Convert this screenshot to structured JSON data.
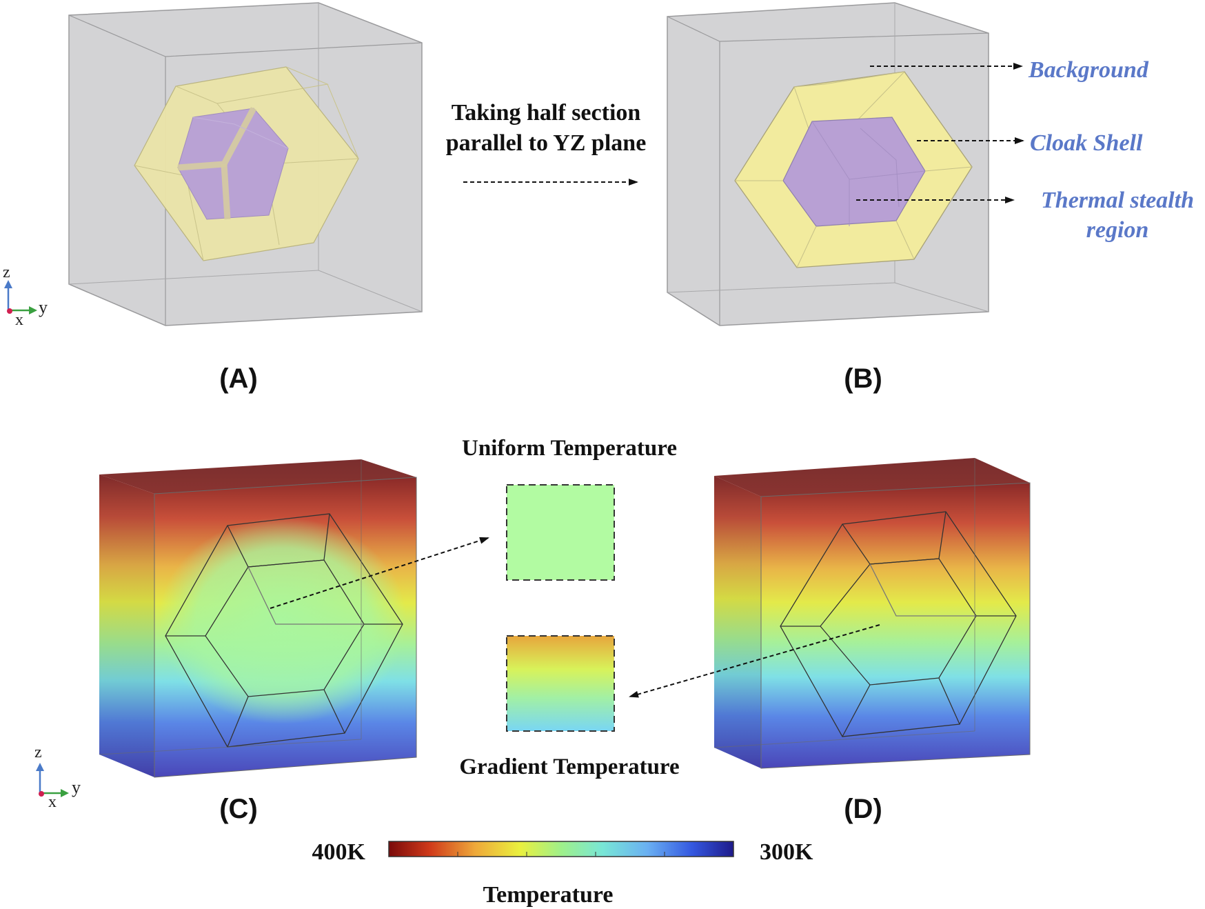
{
  "panels": {
    "a_label": "(A)",
    "b_label": "(B)",
    "c_label": "(C)",
    "d_label": "(D)"
  },
  "annotations": {
    "section_line1": "Taking half section",
    "section_line2": "parallel to YZ plane",
    "background": "Background",
    "cloak_shell": "Cloak Shell",
    "stealth_line1": "Thermal stealth",
    "stealth_line2": "region",
    "uniform": "Uniform Temperature",
    "gradient": "Gradient Temperature"
  },
  "axes": {
    "z": "z",
    "x": "x",
    "y": "y"
  },
  "colorbar": {
    "left_label": "400K",
    "right_label": "300K",
    "title": "Temperature"
  },
  "colors": {
    "label_blue": "#5a78c8",
    "box_gray": "#d0d0d2",
    "shell_yellow": "#f2eaa0",
    "core_purple": "#b7a0d6",
    "uniform_green": "#b2fba2"
  }
}
